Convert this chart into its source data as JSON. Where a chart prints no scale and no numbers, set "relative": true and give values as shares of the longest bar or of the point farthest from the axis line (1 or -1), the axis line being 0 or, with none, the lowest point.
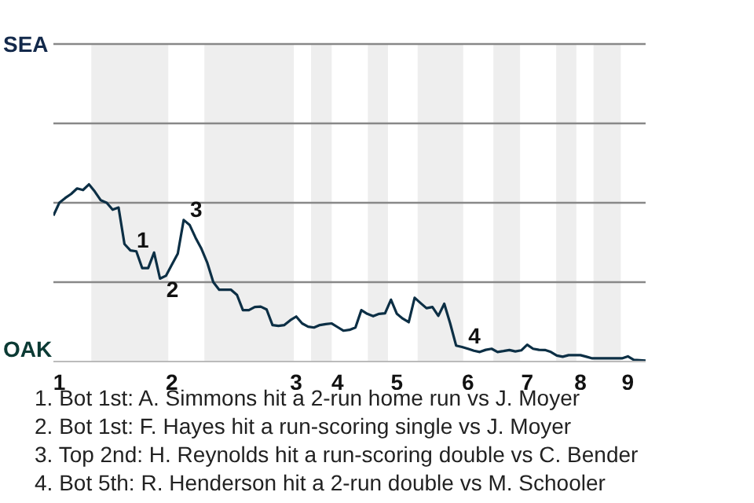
{
  "chart_data": {
    "type": "line",
    "relative": true,
    "categories": [
      null,
      "1",
      null,
      null,
      null,
      null,
      null,
      null,
      null,
      null,
      null,
      null,
      null,
      null,
      null,
      null,
      null,
      null,
      null,
      null,
      "2",
      null,
      null,
      null,
      null,
      null,
      null,
      null,
      null,
      null,
      null,
      null,
      null,
      null,
      null,
      null,
      null,
      null,
      null,
      null,
      null,
      "3",
      null,
      null,
      null,
      null,
      null,
      null,
      "4",
      null,
      null,
      null,
      null,
      null,
      null,
      null,
      null,
      null,
      "5",
      null,
      null,
      null,
      null,
      null,
      null,
      null,
      null,
      null,
      null,
      null,
      "6",
      null,
      null,
      null,
      null,
      null,
      null,
      null,
      null,
      null,
      "7",
      null,
      null,
      null,
      null,
      null,
      null,
      null,
      null,
      "8",
      null,
      null,
      null,
      null,
      null,
      null,
      null,
      "9",
      null,
      null,
      null
    ],
    "series": [
      {
        "color": "#0c2f45",
        "values": [
          0.824,
          0.896,
          0.923,
          0.946,
          0.977,
          0.968,
          1,
          0.959,
          0.91,
          0.896,
          0.857,
          0.869,
          0.663,
          0.627,
          0.622,
          0.527,
          0.527,
          0.615,
          0.468,
          0.484,
          0.547,
          0.609,
          0.799,
          0.771,
          0.699,
          0.636,
          0.556,
          0.448,
          0.405,
          0.405,
          0.405,
          0.376,
          0.29,
          0.29,
          0.308,
          0.31,
          0.294,
          0.206,
          0.201,
          0.206,
          0.233,
          0.254,
          0.215,
          0.197,
          0.192,
          0.206,
          0.211,
          0.215,
          0.194,
          0.174,
          0.179,
          0.192,
          0.29,
          0.269,
          0.256,
          0.269,
          0.272,
          0.349,
          0.269,
          0.242,
          0.222,
          0.36,
          0.33,
          0.301,
          0.308,
          0.258,
          0.326,
          0.215,
          0.09,
          0.082,
          0.072,
          0.061,
          0.054,
          0.066,
          0.072,
          0.054,
          0.059,
          0.065,
          0.057,
          0.063,
          0.095,
          0.072,
          0.066,
          0.065,
          0.054,
          0.034,
          0.027,
          0.036,
          0.036,
          0.036,
          0.027,
          0.018,
          0.018,
          0.018,
          0.018,
          0.018,
          0.018,
          0.029,
          0.009,
          0.007,
          0.005
        ]
      }
    ],
    "legend": false,
    "marker": "none",
    "line_style": "solid",
    "ref_lines": [
      {
        "axis": "y",
        "value": 0.448,
        "color": "#888888"
      },
      {
        "axis": "y",
        "value": 0.896,
        "color": "#888888"
      },
      {
        "axis": "y",
        "value": 1.344,
        "color": "#888888"
      },
      {
        "axis": "y",
        "value": 1.792,
        "color": "#888888"
      }
    ],
    "annotations": [
      "SEA",
      "OAK",
      {
        "text": "1",
        "y": 0.627
      },
      {
        "text": "2",
        "y": 0.468
      },
      {
        "text": "3",
        "y": 0.799
      },
      {
        "text": "4",
        "y": 0.082
      },
      "1. Bot 1st: A. Simmons hit a 2-run home run vs J. Moyer",
      "2. Bot 1st: F. Hayes hit a run-scoring single vs J. Moyer",
      "3. Top 2nd: H. Reynolds hit a run-scoring double vs C. Bender",
      "4. Bot 5th: R. Henderson hit a 2-run double vs M. Schooler"
    ]
  }
}
